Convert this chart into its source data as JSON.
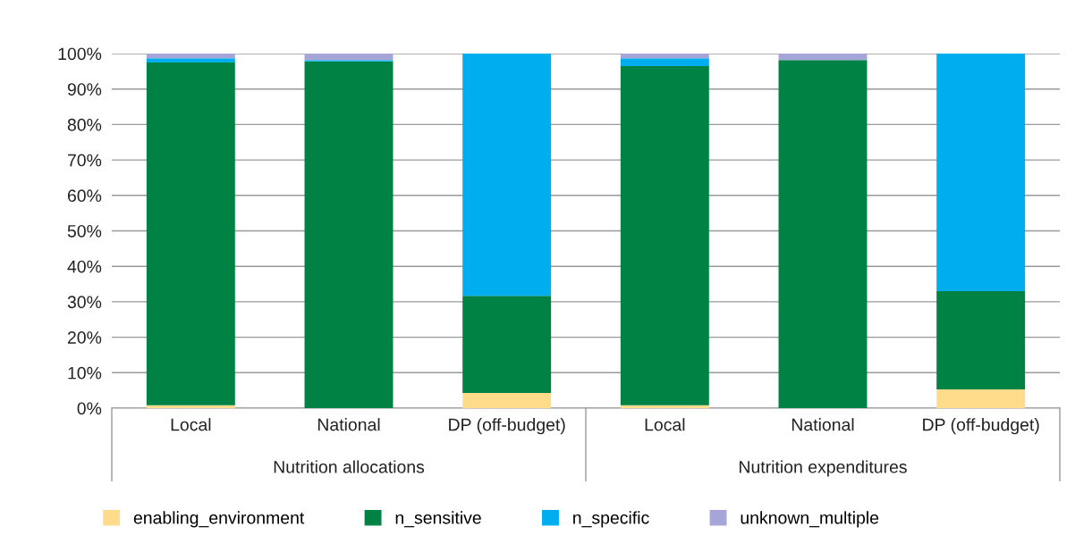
{
  "chart_data": {
    "type": "bar",
    "stacked": true,
    "categories": [
      "Local",
      "National",
      "DP (off-budget)",
      "Local",
      "National",
      "DP (off-budget)"
    ],
    "annotations": [
      "Nutrition allocations",
      "Nutrition expenditures"
    ],
    "series": [
      {
        "name": "enabling_environment",
        "color": "#ffdc8c",
        "values": [
          0.8,
          0,
          4.3,
          0.8,
          0,
          5.3
        ]
      },
      {
        "name": "n_sensitive",
        "color": "#008244",
        "values": [
          96.7,
          97.8,
          27.4,
          95.7,
          98.2,
          27.7
        ]
      },
      {
        "name": "n_specific",
        "color": "#00aeef",
        "values": [
          1.2,
          0.4,
          68.3,
          2.2,
          0,
          67.0
        ]
      },
      {
        "name": "unknown_multiple",
        "color": "#a5a5d7",
        "values": [
          1.3,
          1.8,
          0,
          1.3,
          1.8,
          0
        ]
      }
    ],
    "ylim": [
      0,
      100
    ],
    "yticks": [
      {
        "value": 0,
        "label": "0%"
      },
      {
        "value": 10,
        "label": "10%"
      },
      {
        "value": 20,
        "label": "20%"
      },
      {
        "value": 30,
        "label": "30%"
      },
      {
        "value": 40,
        "label": "40%"
      },
      {
        "value": 50,
        "label": "50%"
      },
      {
        "value": 60,
        "label": "60%"
      },
      {
        "value": 70,
        "label": "70%"
      },
      {
        "value": 80,
        "label": "80%"
      },
      {
        "value": 90,
        "label": "90%"
      },
      {
        "value": 100,
        "label": "100%"
      }
    ],
    "grid": "y",
    "legend": "bottom"
  }
}
